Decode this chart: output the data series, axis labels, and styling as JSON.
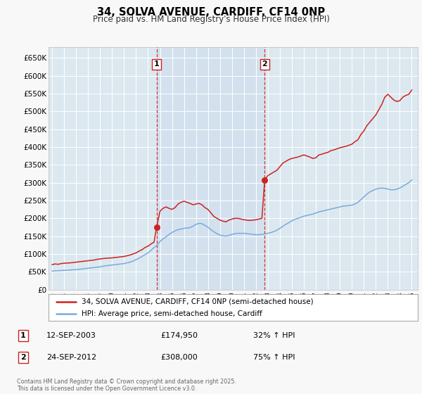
{
  "title": "34, SOLVA AVENUE, CARDIFF, CF14 0NP",
  "subtitle": "Price paid vs. HM Land Registry's House Price Index (HPI)",
  "ylabel_ticks": [
    "£0",
    "£50K",
    "£100K",
    "£150K",
    "£200K",
    "£250K",
    "£300K",
    "£350K",
    "£400K",
    "£450K",
    "£500K",
    "£550K",
    "£600K",
    "£650K"
  ],
  "ytick_vals": [
    0,
    50000,
    100000,
    150000,
    200000,
    250000,
    300000,
    350000,
    400000,
    450000,
    500000,
    550000,
    600000,
    650000
  ],
  "ylim": [
    0,
    680000
  ],
  "xlim_start": 1994.7,
  "xlim_end": 2025.5,
  "xtick_years": [
    1995,
    1996,
    1997,
    1998,
    1999,
    2000,
    2001,
    2002,
    2003,
    2004,
    2005,
    2006,
    2007,
    2008,
    2009,
    2010,
    2011,
    2012,
    2013,
    2014,
    2015,
    2016,
    2017,
    2018,
    2019,
    2020,
    2021,
    2022,
    2023,
    2024,
    2025
  ],
  "marker1_x": 2003.71,
  "marker1_y": 174950,
  "marker2_x": 2012.73,
  "marker2_y": 308000,
  "marker1_label": "1",
  "marker2_label": "2",
  "vline1_x": 2003.71,
  "vline2_x": 2012.73,
  "legend_line1": "34, SOLVA AVENUE, CARDIFF, CF14 0NP (semi-detached house)",
  "legend_line2": "HPI: Average price, semi-detached house, Cardiff",
  "annotation1_box": "1",
  "annotation1_date": "12-SEP-2003",
  "annotation1_price": "£174,950",
  "annotation1_hpi": "32% ↑ HPI",
  "annotation2_box": "2",
  "annotation2_date": "24-SEP-2012",
  "annotation2_price": "£308,000",
  "annotation2_hpi": "75% ↑ HPI",
  "copyright_text": "Contains HM Land Registry data © Crown copyright and database right 2025.\nThis data is licensed under the Open Government Licence v3.0.",
  "red_color": "#cc2222",
  "blue_color": "#7aaadd",
  "bg_plot": "#dce8f0",
  "bg_fig": "#f8f8f8",
  "grid_color": "#ffffff",
  "vline_color": "#cc2222",
  "shade_color": "#d0dff0",
  "red_hpi_data": [
    [
      1995.0,
      70000
    ],
    [
      1995.25,
      72000
    ],
    [
      1995.5,
      71000
    ],
    [
      1995.75,
      73000
    ],
    [
      1996.0,
      74000
    ],
    [
      1996.25,
      74500
    ],
    [
      1996.5,
      75000
    ],
    [
      1996.75,
      76000
    ],
    [
      1997.0,
      77000
    ],
    [
      1997.25,
      78000
    ],
    [
      1997.5,
      79000
    ],
    [
      1997.75,
      80000
    ],
    [
      1998.0,
      81000
    ],
    [
      1998.25,
      82000
    ],
    [
      1998.5,
      83000
    ],
    [
      1998.75,
      85000
    ],
    [
      1999.0,
      86000
    ],
    [
      1999.25,
      87000
    ],
    [
      1999.5,
      88000
    ],
    [
      1999.75,
      88500
    ],
    [
      2000.0,
      89000
    ],
    [
      2000.25,
      90000
    ],
    [
      2000.5,
      91000
    ],
    [
      2000.75,
      92000
    ],
    [
      2001.0,
      93000
    ],
    [
      2001.25,
      95000
    ],
    [
      2001.5,
      97000
    ],
    [
      2001.75,
      100000
    ],
    [
      2002.0,
      103000
    ],
    [
      2002.25,
      108000
    ],
    [
      2002.5,
      112000
    ],
    [
      2002.75,
      118000
    ],
    [
      2003.0,
      122000
    ],
    [
      2003.25,
      128000
    ],
    [
      2003.5,
      133000
    ],
    [
      2003.71,
      174950
    ],
    [
      2004.0,
      220000
    ],
    [
      2004.25,
      228000
    ],
    [
      2004.5,
      232000
    ],
    [
      2004.75,
      228000
    ],
    [
      2005.0,
      225000
    ],
    [
      2005.25,
      230000
    ],
    [
      2005.5,
      240000
    ],
    [
      2005.75,
      245000
    ],
    [
      2006.0,
      248000
    ],
    [
      2006.25,
      245000
    ],
    [
      2006.5,
      242000
    ],
    [
      2006.75,
      238000
    ],
    [
      2007.0,
      240000
    ],
    [
      2007.25,
      242000
    ],
    [
      2007.5,
      238000
    ],
    [
      2007.75,
      230000
    ],
    [
      2008.0,
      225000
    ],
    [
      2008.25,
      215000
    ],
    [
      2008.5,
      205000
    ],
    [
      2008.75,
      200000
    ],
    [
      2009.0,
      195000
    ],
    [
      2009.25,
      192000
    ],
    [
      2009.5,
      190000
    ],
    [
      2009.75,
      195000
    ],
    [
      2010.0,
      198000
    ],
    [
      2010.25,
      200000
    ],
    [
      2010.5,
      200000
    ],
    [
      2010.75,
      198000
    ],
    [
      2011.0,
      196000
    ],
    [
      2011.25,
      195000
    ],
    [
      2011.5,
      194000
    ],
    [
      2011.75,
      195000
    ],
    [
      2012.0,
      196000
    ],
    [
      2012.25,
      198000
    ],
    [
      2012.5,
      200000
    ],
    [
      2012.73,
      308000
    ],
    [
      2013.0,
      320000
    ],
    [
      2013.25,
      325000
    ],
    [
      2013.5,
      330000
    ],
    [
      2013.75,
      335000
    ],
    [
      2014.0,
      345000
    ],
    [
      2014.25,
      355000
    ],
    [
      2014.5,
      360000
    ],
    [
      2014.75,
      365000
    ],
    [
      2015.0,
      368000
    ],
    [
      2015.25,
      370000
    ],
    [
      2015.5,
      372000
    ],
    [
      2015.75,
      375000
    ],
    [
      2016.0,
      378000
    ],
    [
      2016.25,
      375000
    ],
    [
      2016.5,
      372000
    ],
    [
      2016.75,
      368000
    ],
    [
      2017.0,
      370000
    ],
    [
      2017.25,
      378000
    ],
    [
      2017.5,
      380000
    ],
    [
      2017.75,
      383000
    ],
    [
      2018.0,
      385000
    ],
    [
      2018.25,
      390000
    ],
    [
      2018.5,
      392000
    ],
    [
      2018.75,
      395000
    ],
    [
      2019.0,
      398000
    ],
    [
      2019.25,
      400000
    ],
    [
      2019.5,
      402000
    ],
    [
      2019.75,
      405000
    ],
    [
      2020.0,
      408000
    ],
    [
      2020.25,
      415000
    ],
    [
      2020.5,
      420000
    ],
    [
      2020.75,
      435000
    ],
    [
      2021.0,
      445000
    ],
    [
      2021.25,
      460000
    ],
    [
      2021.5,
      470000
    ],
    [
      2021.75,
      480000
    ],
    [
      2022.0,
      490000
    ],
    [
      2022.25,
      505000
    ],
    [
      2022.5,
      520000
    ],
    [
      2022.75,
      540000
    ],
    [
      2023.0,
      548000
    ],
    [
      2023.25,
      540000
    ],
    [
      2023.5,
      532000
    ],
    [
      2023.75,
      528000
    ],
    [
      2024.0,
      530000
    ],
    [
      2024.25,
      540000
    ],
    [
      2024.5,
      545000
    ],
    [
      2024.75,
      548000
    ],
    [
      2025.0,
      560000
    ]
  ],
  "blue_hpi_data": [
    [
      1995.0,
      52000
    ],
    [
      1995.25,
      52500
    ],
    [
      1995.5,
      53000
    ],
    [
      1995.75,
      53500
    ],
    [
      1996.0,
      54000
    ],
    [
      1996.25,
      54500
    ],
    [
      1996.5,
      55000
    ],
    [
      1996.75,
      55500
    ],
    [
      1997.0,
      56000
    ],
    [
      1997.25,
      57000
    ],
    [
      1997.5,
      58000
    ],
    [
      1997.75,
      59000
    ],
    [
      1998.0,
      60000
    ],
    [
      1998.25,
      61000
    ],
    [
      1998.5,
      62000
    ],
    [
      1998.75,
      63000
    ],
    [
      1999.0,
      64000
    ],
    [
      1999.25,
      65500
    ],
    [
      1999.5,
      67000
    ],
    [
      1999.75,
      68000
    ],
    [
      2000.0,
      69000
    ],
    [
      2000.25,
      70000
    ],
    [
      2000.5,
      71000
    ],
    [
      2000.75,
      72000
    ],
    [
      2001.0,
      73000
    ],
    [
      2001.25,
      75000
    ],
    [
      2001.5,
      77000
    ],
    [
      2001.75,
      80000
    ],
    [
      2002.0,
      84000
    ],
    [
      2002.25,
      88000
    ],
    [
      2002.5,
      93000
    ],
    [
      2002.75,
      98000
    ],
    [
      2003.0,
      103000
    ],
    [
      2003.25,
      110000
    ],
    [
      2003.5,
      118000
    ],
    [
      2003.75,
      125000
    ],
    [
      2004.0,
      135000
    ],
    [
      2004.25,
      142000
    ],
    [
      2004.5,
      148000
    ],
    [
      2004.75,
      155000
    ],
    [
      2005.0,
      160000
    ],
    [
      2005.25,
      165000
    ],
    [
      2005.5,
      168000
    ],
    [
      2005.75,
      170000
    ],
    [
      2006.0,
      172000
    ],
    [
      2006.25,
      173000
    ],
    [
      2006.5,
      174000
    ],
    [
      2006.75,
      178000
    ],
    [
      2007.0,
      183000
    ],
    [
      2007.25,
      186000
    ],
    [
      2007.5,
      185000
    ],
    [
      2007.75,
      180000
    ],
    [
      2008.0,
      175000
    ],
    [
      2008.25,
      168000
    ],
    [
      2008.5,
      162000
    ],
    [
      2008.75,
      157000
    ],
    [
      2009.0,
      153000
    ],
    [
      2009.25,
      151000
    ],
    [
      2009.5,
      150000
    ],
    [
      2009.75,
      152000
    ],
    [
      2010.0,
      155000
    ],
    [
      2010.25,
      157000
    ],
    [
      2010.5,
      158000
    ],
    [
      2010.75,
      158000
    ],
    [
      2011.0,
      158000
    ],
    [
      2011.25,
      157000
    ],
    [
      2011.5,
      156000
    ],
    [
      2011.75,
      155000
    ],
    [
      2012.0,
      154000
    ],
    [
      2012.25,
      154000
    ],
    [
      2012.5,
      155000
    ],
    [
      2012.75,
      156000
    ],
    [
      2013.0,
      158000
    ],
    [
      2013.25,
      160000
    ],
    [
      2013.5,
      163000
    ],
    [
      2013.75,
      167000
    ],
    [
      2014.0,
      172000
    ],
    [
      2014.25,
      178000
    ],
    [
      2014.5,
      183000
    ],
    [
      2014.75,
      188000
    ],
    [
      2015.0,
      193000
    ],
    [
      2015.25,
      197000
    ],
    [
      2015.5,
      200000
    ],
    [
      2015.75,
      203000
    ],
    [
      2016.0,
      206000
    ],
    [
      2016.25,
      208000
    ],
    [
      2016.5,
      210000
    ],
    [
      2016.75,
      212000
    ],
    [
      2017.0,
      215000
    ],
    [
      2017.25,
      218000
    ],
    [
      2017.5,
      220000
    ],
    [
      2017.75,
      222000
    ],
    [
      2018.0,
      224000
    ],
    [
      2018.25,
      226000
    ],
    [
      2018.5,
      228000
    ],
    [
      2018.75,
      230000
    ],
    [
      2019.0,
      232000
    ],
    [
      2019.25,
      234000
    ],
    [
      2019.5,
      235000
    ],
    [
      2019.75,
      236000
    ],
    [
      2020.0,
      237000
    ],
    [
      2020.25,
      240000
    ],
    [
      2020.5,
      245000
    ],
    [
      2020.75,
      252000
    ],
    [
      2021.0,
      260000
    ],
    [
      2021.25,
      268000
    ],
    [
      2021.5,
      274000
    ],
    [
      2021.75,
      278000
    ],
    [
      2022.0,
      282000
    ],
    [
      2022.25,
      284000
    ],
    [
      2022.5,
      285000
    ],
    [
      2022.75,
      284000
    ],
    [
      2023.0,
      282000
    ],
    [
      2023.25,
      280000
    ],
    [
      2023.5,
      280000
    ],
    [
      2023.75,
      282000
    ],
    [
      2024.0,
      285000
    ],
    [
      2024.25,
      290000
    ],
    [
      2024.5,
      295000
    ],
    [
      2024.75,
      300000
    ],
    [
      2025.0,
      308000
    ]
  ]
}
